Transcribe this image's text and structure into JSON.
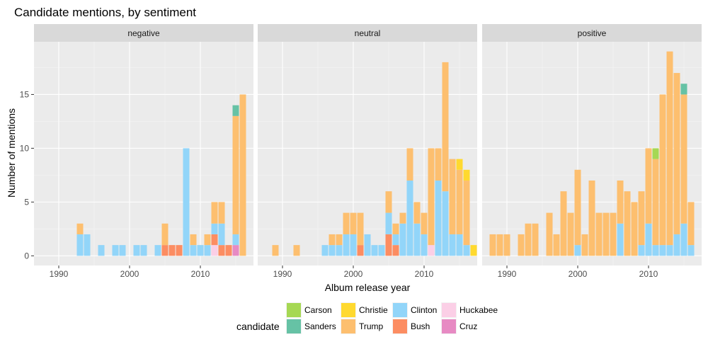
{
  "chart_data": {
    "type": "bar",
    "stacked": true,
    "title": "Candidate mentions, by sentiment",
    "xlabel": "Album release year",
    "ylabel": "Number of mentions",
    "xlim": [
      1986.5,
      2017.5
    ],
    "ylim": [
      -0.9,
      19.9
    ],
    "x_ticks": [
      1990,
      2000,
      2010
    ],
    "y_ticks": [
      0,
      5,
      10,
      15
    ],
    "grid": true,
    "legend": {
      "title": "candidate",
      "position": "bottom",
      "items": [
        {
          "name": "Carson",
          "color": "#a6d854"
        },
        {
          "name": "Sanders",
          "color": "#66c2a5"
        },
        {
          "name": "Christie",
          "color": "#ffd92f"
        },
        {
          "name": "Trump",
          "color": "#fdbf6f"
        },
        {
          "name": "Clinton",
          "color": "#92d5f9"
        },
        {
          "name": "Bush",
          "color": "#fc8d62"
        },
        {
          "name": "Huckabee",
          "color": "#fbcfe6"
        },
        {
          "name": "Cruz",
          "color": "#e78ac3"
        }
      ]
    },
    "stack_order": [
      "Cruz",
      "Huckabee",
      "Bush",
      "Clinton",
      "Trump",
      "Christie",
      "Sanders",
      "Carson"
    ],
    "panels": [
      {
        "label": "negative",
        "bars": [
          {
            "x": 1993,
            "Clinton": 2,
            "Trump": 1
          },
          {
            "x": 1994,
            "Clinton": 2
          },
          {
            "x": 1996,
            "Clinton": 1
          },
          {
            "x": 1998,
            "Clinton": 1
          },
          {
            "x": 1999,
            "Clinton": 1
          },
          {
            "x": 2001,
            "Clinton": 1
          },
          {
            "x": 2002,
            "Clinton": 1
          },
          {
            "x": 2004,
            "Clinton": 1
          },
          {
            "x": 2005,
            "Bush": 1,
            "Trump": 2
          },
          {
            "x": 2006,
            "Bush": 1
          },
          {
            "x": 2007,
            "Bush": 1
          },
          {
            "x": 2008,
            "Clinton": 10
          },
          {
            "x": 2009,
            "Clinton": 1,
            "Trump": 1
          },
          {
            "x": 2010,
            "Clinton": 1
          },
          {
            "x": 2011,
            "Clinton": 1,
            "Trump": 1
          },
          {
            "x": 2012,
            "Huckabee": 1,
            "Bush": 1,
            "Clinton": 1,
            "Trump": 2
          },
          {
            "x": 2013,
            "Bush": 1,
            "Clinton": 2,
            "Trump": 2
          },
          {
            "x": 2014,
            "Bush": 1
          },
          {
            "x": 2015,
            "Cruz": 1,
            "Clinton": 1,
            "Trump": 11,
            "Sanders": 1
          },
          {
            "x": 2016,
            "Trump": 15
          }
        ]
      },
      {
        "label": "neutral",
        "bars": [
          {
            "x": 1989,
            "Trump": 1
          },
          {
            "x": 1992,
            "Trump": 1
          },
          {
            "x": 1996,
            "Clinton": 1
          },
          {
            "x": 1997,
            "Clinton": 1,
            "Trump": 1
          },
          {
            "x": 1998,
            "Clinton": 1,
            "Trump": 1
          },
          {
            "x": 1999,
            "Clinton": 2,
            "Trump": 2
          },
          {
            "x": 2000,
            "Clinton": 2,
            "Trump": 2
          },
          {
            "x": 2001,
            "Bush": 1,
            "Trump": 3
          },
          {
            "x": 2002,
            "Clinton": 2
          },
          {
            "x": 2003,
            "Clinton": 1
          },
          {
            "x": 2004,
            "Clinton": 1
          },
          {
            "x": 2005,
            "Bush": 2,
            "Clinton": 2,
            "Trump": 2
          },
          {
            "x": 2006,
            "Bush": 1,
            "Clinton": 1,
            "Trump": 1
          },
          {
            "x": 2007,
            "Clinton": 3,
            "Trump": 1
          },
          {
            "x": 2008,
            "Clinton": 7,
            "Trump": 3
          },
          {
            "x": 2009,
            "Clinton": 3,
            "Trump": 2
          },
          {
            "x": 2010,
            "Clinton": 2,
            "Trump": 2
          },
          {
            "x": 2011,
            "Huckabee": 1,
            "Trump": 9
          },
          {
            "x": 2012,
            "Clinton": 7,
            "Trump": 3
          },
          {
            "x": 2013,
            "Clinton": 6,
            "Trump": 12
          },
          {
            "x": 2014,
            "Clinton": 2,
            "Trump": 7
          },
          {
            "x": 2015,
            "Christie": 1,
            "Clinton": 2,
            "Trump": 6
          },
          {
            "x": 2016,
            "Christie": 1,
            "Clinton": 1,
            "Trump": 6
          },
          {
            "x": 2017,
            "Christie": 1
          }
        ]
      },
      {
        "label": "positive",
        "bars": [
          {
            "x": 1988,
            "Trump": 2
          },
          {
            "x": 1989,
            "Trump": 2
          },
          {
            "x": 1990,
            "Trump": 2
          },
          {
            "x": 1992,
            "Trump": 2
          },
          {
            "x": 1993,
            "Trump": 3
          },
          {
            "x": 1994,
            "Trump": 3
          },
          {
            "x": 1996,
            "Trump": 4
          },
          {
            "x": 1997,
            "Trump": 2
          },
          {
            "x": 1998,
            "Trump": 6
          },
          {
            "x": 1999,
            "Trump": 4
          },
          {
            "x": 2000,
            "Clinton": 1,
            "Trump": 7
          },
          {
            "x": 2001,
            "Trump": 2
          },
          {
            "x": 2002,
            "Trump": 7
          },
          {
            "x": 2003,
            "Trump": 4
          },
          {
            "x": 2004,
            "Trump": 4
          },
          {
            "x": 2005,
            "Trump": 4
          },
          {
            "x": 2006,
            "Clinton": 3,
            "Trump": 4
          },
          {
            "x": 2007,
            "Trump": 6
          },
          {
            "x": 2008,
            "Trump": 5
          },
          {
            "x": 2009,
            "Clinton": 1,
            "Trump": 5
          },
          {
            "x": 2010,
            "Clinton": 3,
            "Trump": 7
          },
          {
            "x": 2011,
            "Clinton": 1,
            "Trump": 8,
            "Carson": 1
          },
          {
            "x": 2012,
            "Clinton": 1,
            "Trump": 14
          },
          {
            "x": 2013,
            "Clinton": 1,
            "Trump": 18
          },
          {
            "x": 2014,
            "Clinton": 2,
            "Trump": 15
          },
          {
            "x": 2015,
            "Clinton": 3,
            "Trump": 12,
            "Sanders": 1
          },
          {
            "x": 2016,
            "Clinton": 1,
            "Trump": 4
          }
        ]
      }
    ]
  }
}
